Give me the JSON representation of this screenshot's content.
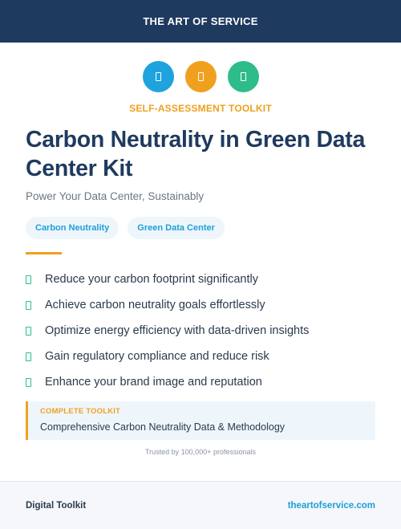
{
  "header": {
    "brand": "THE ART OF SERVICE"
  },
  "icons": [
    {
      "name": "document-icon",
      "color": "#1ea3df"
    },
    {
      "name": "document-icon",
      "color": "#f0a01f"
    },
    {
      "name": "document-icon",
      "color": "#2ebd8a"
    }
  ],
  "eyebrow": "SELF-ASSESSMENT TOOLKIT",
  "title": "Carbon Neutrality in Green Data Center Kit",
  "subtitle": "Power Your Data Center, Sustainably",
  "tags": [
    "Carbon Neutrality",
    "Green Data Center"
  ],
  "benefits": [
    "Reduce your carbon footprint significantly",
    "Achieve carbon neutrality goals effortlessly",
    "Optimize energy efficiency with data-driven insights",
    "Gain regulatory compliance and reduce risk",
    "Enhance your brand image and reputation"
  ],
  "toolkit": {
    "label": "COMPLETE TOOLKIT",
    "description": "Comprehensive Carbon Neutrality Data & Methodology"
  },
  "trusted": "Trusted by 100,000+ professionals",
  "footer": {
    "left": "Digital Toolkit",
    "right": "theartofservice.com"
  },
  "colors": {
    "navy": "#1f3a5f",
    "orange": "#f0a01f",
    "blue": "#1ea3df",
    "green": "#2ebd8a"
  }
}
